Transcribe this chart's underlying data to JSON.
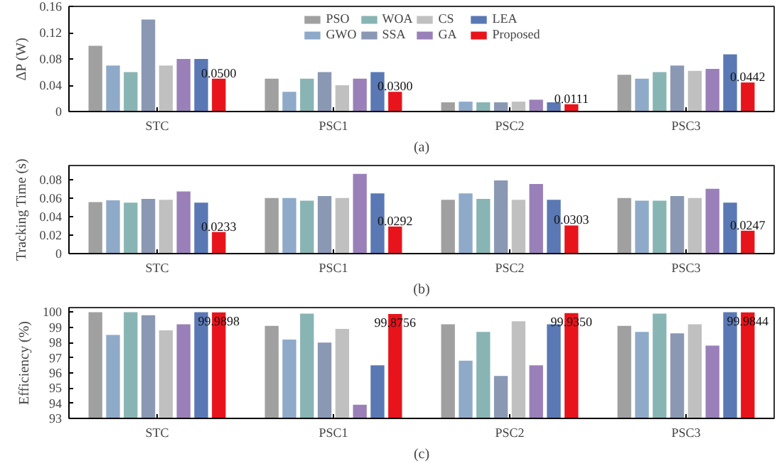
{
  "chart_data": [
    {
      "type": "bar",
      "ylabel": "ΔP (W)",
      "xlabel": "(a)",
      "categories": [
        "STC",
        "PSC1",
        "PSC2",
        "PSC3"
      ],
      "ylim": [
        0,
        0.16
      ],
      "yticks": [
        0,
        0.04,
        0.08,
        0.12,
        0.16
      ],
      "legend": "top",
      "grid": false,
      "series": [
        {
          "name": "PSO",
          "color": "#a0a0a0",
          "values": [
            0.1,
            0.05,
            0.014,
            0.056
          ]
        },
        {
          "name": "GWO",
          "color": "#8eaac8",
          "values": [
            0.07,
            0.03,
            0.015,
            0.05
          ]
        },
        {
          "name": "WOA",
          "color": "#88b4b4",
          "values": [
            0.06,
            0.05,
            0.014,
            0.06
          ]
        },
        {
          "name": "SSA",
          "color": "#8a98b4",
          "values": [
            0.14,
            0.06,
            0.014,
            0.07
          ]
        },
        {
          "name": "CS",
          "color": "#c0c0c0",
          "values": [
            0.07,
            0.04,
            0.015,
            0.062
          ]
        },
        {
          "name": "GA",
          "color": "#9a80b8",
          "values": [
            0.08,
            0.05,
            0.018,
            0.065
          ]
        },
        {
          "name": "LEA",
          "color": "#5a78b4",
          "values": [
            0.08,
            0.06,
            0.014,
            0.087
          ]
        },
        {
          "name": "Proposed",
          "color": "#e8141c",
          "values": [
            0.05,
            0.03,
            0.0111,
            0.0442
          ],
          "value_labels": [
            "0.0500",
            "0.0300",
            "0.0111",
            "0.0442"
          ]
        }
      ]
    },
    {
      "type": "bar",
      "ylabel": "Tracking Time (s)",
      "xlabel": "(b)",
      "categories": [
        "STC",
        "PSC1",
        "PSC2",
        "PSC3"
      ],
      "ylim": [
        0,
        0.095
      ],
      "yticks": [
        0,
        0.02,
        0.04,
        0.06,
        0.08
      ],
      "grid": false,
      "series": [
        {
          "color": "#a0a0a0",
          "values": [
            0.0555,
            0.06,
            0.058,
            0.06
          ]
        },
        {
          "color": "#8eaac8",
          "values": [
            0.0575,
            0.06,
            0.065,
            0.057
          ]
        },
        {
          "color": "#88b4b4",
          "values": [
            0.055,
            0.057,
            0.059,
            0.057
          ]
        },
        {
          "color": "#8a98b4",
          "values": [
            0.059,
            0.062,
            0.079,
            0.062
          ]
        },
        {
          "color": "#c0c0c0",
          "values": [
            0.058,
            0.06,
            0.058,
            0.06
          ]
        },
        {
          "color": "#9a80b8",
          "values": [
            0.067,
            0.086,
            0.075,
            0.07
          ]
        },
        {
          "color": "#5a78b4",
          "values": [
            0.055,
            0.065,
            0.058,
            0.055
          ]
        },
        {
          "color": "#e8141c",
          "values": [
            0.0233,
            0.0292,
            0.0303,
            0.0247
          ],
          "value_labels": [
            "0.0233",
            "0.0292",
            "0.0303",
            "0.0247"
          ]
        }
      ]
    },
    {
      "type": "bar",
      "ylabel": "Efficiency (%)",
      "xlabel": "(c)",
      "categories": [
        "STC",
        "PSC1",
        "PSC2",
        "PSC3"
      ],
      "ylim": [
        93,
        100.3
      ],
      "yticks": [
        93,
        94,
        95,
        96,
        97,
        98,
        99,
        100
      ],
      "grid": false,
      "series": [
        {
          "color": "#a0a0a0",
          "values": [
            100.0,
            99.1,
            99.2,
            99.1
          ]
        },
        {
          "color": "#8eaac8",
          "values": [
            98.5,
            98.2,
            96.8,
            98.7
          ]
        },
        {
          "color": "#88b4b4",
          "values": [
            100.0,
            99.9,
            98.7,
            99.9
          ]
        },
        {
          "color": "#8a98b4",
          "values": [
            99.8,
            98.0,
            95.8,
            98.6
          ]
        },
        {
          "color": "#c0c0c0",
          "values": [
            98.8,
            98.9,
            99.4,
            99.2
          ]
        },
        {
          "color": "#9a80b8",
          "values": [
            99.2,
            93.9,
            96.5,
            97.8
          ]
        },
        {
          "color": "#5a78b4",
          "values": [
            100.0,
            96.5,
            99.2,
            100.0
          ]
        },
        {
          "color": "#e8141c",
          "values": [
            99.9898,
            99.8756,
            99.935,
            99.9844
          ],
          "value_labels": [
            "99.9898",
            "99.8756",
            "99.9350",
            "99.9844"
          ]
        }
      ]
    }
  ]
}
